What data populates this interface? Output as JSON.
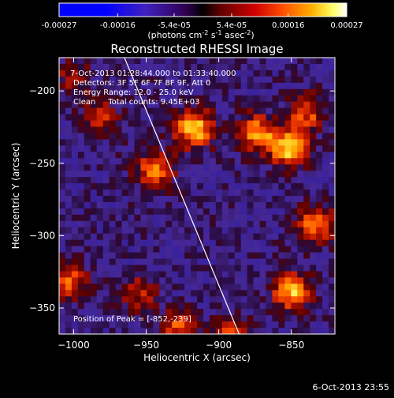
{
  "colorbar": {
    "tick_labels": [
      "-0.00027",
      "-0.00016",
      "-5.4e-05",
      "5.4e-05",
      "0.00016",
      "0.00027"
    ],
    "tick_values": [
      -0.00027,
      -0.00016,
      -5.4e-05,
      5.4e-05,
      0.00016,
      0.00027
    ],
    "range": [
      -0.00027,
      0.00027
    ],
    "unit_label": "(photons cm",
    "unit_parts": [
      "(photons cm",
      "-2",
      " s",
      "-1",
      " asec",
      "-2",
      ")"
    ]
  },
  "chart_data": {
    "type": "heatmap",
    "title": "Reconstructed RHESSI Image",
    "xlabel": "Heliocentric X (arcsec)",
    "ylabel": "Heliocentric Y (arcsec)",
    "xlim": [
      -1010,
      -820
    ],
    "ylim": [
      -368,
      -177
    ],
    "xticks": [
      -1000,
      -950,
      -900,
      -850
    ],
    "xtick_labels": [
      "−1000",
      "−950",
      "−900",
      "−850"
    ],
    "yticks": [
      -200,
      -250,
      -300,
      -350
    ],
    "ytick_labels": [
      "−200",
      "−250",
      "−300",
      "−350"
    ],
    "limb_line": [
      [
        -965,
        -177
      ],
      [
        -886,
        -368
      ]
    ],
    "emission_sources": [
      {
        "x": -917,
        "y": -226,
        "rel": 1.0
      },
      {
        "x": -852,
        "y": -239,
        "rel": 0.95
      },
      {
        "x": -944,
        "y": -255,
        "rel": 0.75
      },
      {
        "x": -874,
        "y": -229,
        "rel": 0.8
      },
      {
        "x": -840,
        "y": -215,
        "rel": 0.6
      },
      {
        "x": -833,
        "y": -292,
        "rel": 0.75
      },
      {
        "x": -850,
        "y": -338,
        "rel": 0.85
      },
      {
        "x": -1004,
        "y": -331,
        "rel": 0.6
      },
      {
        "x": -955,
        "y": -340,
        "rel": 0.45
      },
      {
        "x": -928,
        "y": -365,
        "rel": 0.6
      },
      {
        "x": -892,
        "y": -368,
        "rel": 0.5
      },
      {
        "x": -982,
        "y": -218,
        "rel": 0.45
      },
      {
        "x": -1000,
        "y": -190,
        "rel": 0.35
      }
    ],
    "annotations": {
      "time_range": "7-Oct-2013 01:28:44.000 to 01:33:40.000",
      "detectors": "Detectors: 3F 5F 6F 7F 8F 9F, Att 0",
      "energy": "Energy Range: 12.0 - 25.0 keV",
      "clean": "Clean     Total counts: 9.45E+03",
      "peak": "Position of Peak = [-852,-239]"
    }
  },
  "footer": {
    "timestamp": "6-Oct-2013 23:55"
  }
}
